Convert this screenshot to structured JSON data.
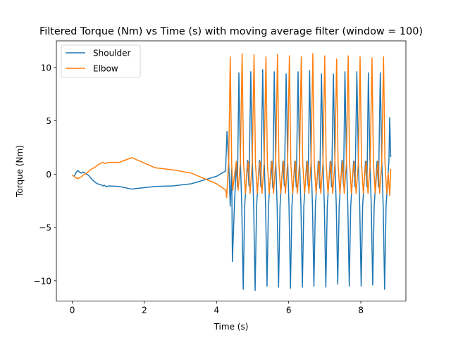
{
  "chart_data": {
    "type": "line",
    "title": "Filtered Torque (Nm) vs Time (s) with moving average filter (window = 100)",
    "xlabel": "Time (s)",
    "ylabel": "Torque (Nm)",
    "xlim": [
      -0.44,
      9.25
    ],
    "ylim": [
      -11.9,
      12.5
    ],
    "xticks": [
      0,
      2,
      4,
      6,
      8
    ],
    "yticks": [
      -10,
      -5,
      0,
      5,
      10
    ],
    "grid": false,
    "legend_position": "top-left",
    "series": [
      {
        "name": "Shoulder",
        "color": "#1f77b4",
        "points": [
          [
            0.0,
            -0.1
          ],
          [
            0.05,
            -0.2
          ],
          [
            0.1,
            0.1
          ],
          [
            0.15,
            0.35
          ],
          [
            0.2,
            0.2
          ],
          [
            0.25,
            0.1
          ],
          [
            0.3,
            0.2
          ],
          [
            0.35,
            0.1
          ],
          [
            0.4,
            0.0
          ],
          [
            0.45,
            -0.1
          ],
          [
            0.5,
            -0.3
          ],
          [
            0.55,
            -0.5
          ],
          [
            0.6,
            -0.65
          ],
          [
            0.65,
            -0.8
          ],
          [
            0.7,
            -0.9
          ],
          [
            0.75,
            -0.95
          ],
          [
            0.8,
            -1.0
          ],
          [
            0.85,
            -1.1
          ],
          [
            0.9,
            -1.05
          ],
          [
            0.95,
            -1.2
          ],
          [
            1.0,
            -1.1
          ],
          [
            1.3,
            -1.15
          ],
          [
            1.65,
            -1.4
          ],
          [
            2.3,
            -1.15
          ],
          [
            2.8,
            -1.1
          ],
          [
            3.3,
            -0.9
          ],
          [
            4.0,
            -0.2
          ],
          [
            4.25,
            0.3
          ],
          [
            4.29,
            4.0
          ],
          [
            4.34,
            1.0
          ],
          [
            4.38,
            -3.0
          ],
          [
            4.42,
            0.5
          ],
          [
            4.44,
            -8.2
          ],
          [
            4.5,
            -2.5
          ],
          [
            4.55,
            1.0
          ],
          [
            4.58,
            -1.2
          ],
          [
            4.62,
            9.5
          ],
          [
            4.66,
            1.5
          ],
          [
            4.7,
            -3.0
          ],
          [
            4.74,
            -10.8
          ],
          [
            4.78,
            -3.0
          ],
          [
            4.86,
            1.3
          ],
          [
            4.9,
            -1.1
          ],
          [
            4.95,
            9.6
          ],
          [
            4.99,
            1.5
          ],
          [
            5.03,
            -3.0
          ],
          [
            5.07,
            -10.9
          ],
          [
            5.11,
            -3.0
          ],
          [
            5.19,
            1.3
          ],
          [
            5.23,
            -1.2
          ],
          [
            5.28,
            9.8
          ],
          [
            5.32,
            1.5
          ],
          [
            5.36,
            -3.0
          ],
          [
            5.4,
            -10.5
          ],
          [
            5.44,
            -3.0
          ],
          [
            5.52,
            1.2
          ],
          [
            5.56,
            -1.3
          ],
          [
            5.6,
            9.6
          ],
          [
            5.64,
            1.5
          ],
          [
            5.68,
            -3.0
          ],
          [
            5.72,
            -10.6
          ],
          [
            5.76,
            -3.0
          ],
          [
            5.84,
            1.2
          ],
          [
            5.88,
            -1.1
          ],
          [
            5.93,
            9.4
          ],
          [
            5.97,
            1.5
          ],
          [
            6.01,
            -3.1
          ],
          [
            6.05,
            -10.7
          ],
          [
            6.09,
            -3.0
          ],
          [
            6.17,
            1.2
          ],
          [
            6.21,
            -1.2
          ],
          [
            6.26,
            9.6
          ],
          [
            6.3,
            1.5
          ],
          [
            6.34,
            -3.0
          ],
          [
            6.38,
            -10.6
          ],
          [
            6.42,
            -3.0
          ],
          [
            6.5,
            1.2
          ],
          [
            6.54,
            -1.1
          ],
          [
            6.58,
            9.7
          ],
          [
            6.62,
            1.5
          ],
          [
            6.66,
            -3.0
          ],
          [
            6.7,
            -10.5
          ],
          [
            6.74,
            -3.0
          ],
          [
            6.82,
            1.2
          ],
          [
            6.86,
            -1.3
          ],
          [
            6.91,
            9.4
          ],
          [
            6.95,
            1.5
          ],
          [
            6.99,
            -3.1
          ],
          [
            7.03,
            -10.6
          ],
          [
            7.07,
            -3.0
          ],
          [
            7.15,
            1.2
          ],
          [
            7.19,
            -1.2
          ],
          [
            7.24,
            9.4
          ],
          [
            7.28,
            1.5
          ],
          [
            7.32,
            -3.0
          ],
          [
            7.36,
            -10.3
          ],
          [
            7.4,
            -3.0
          ],
          [
            7.48,
            1.3
          ],
          [
            7.52,
            -1.1
          ],
          [
            7.56,
            9.6
          ],
          [
            7.6,
            1.5
          ],
          [
            7.64,
            -3.0
          ],
          [
            7.68,
            -10.5
          ],
          [
            7.72,
            -3.0
          ],
          [
            7.8,
            1.2
          ],
          [
            7.84,
            -1.2
          ],
          [
            7.89,
            9.6
          ],
          [
            7.93,
            1.5
          ],
          [
            7.97,
            -3.0
          ],
          [
            8.01,
            -10.5
          ],
          [
            8.05,
            -3.0
          ],
          [
            8.13,
            1.2
          ],
          [
            8.17,
            -1.2
          ],
          [
            8.21,
            9.5
          ],
          [
            8.25,
            1.5
          ],
          [
            8.29,
            -3.0
          ],
          [
            8.33,
            -10.4
          ],
          [
            8.37,
            -3.0
          ],
          [
            8.45,
            1.2
          ],
          [
            8.49,
            -1.2
          ],
          [
            8.54,
            9.5
          ],
          [
            8.58,
            1.5
          ],
          [
            8.62,
            -3.0
          ],
          [
            8.66,
            -10.8
          ],
          [
            8.7,
            -3.0
          ],
          [
            8.78,
            1.3
          ],
          [
            8.8,
            5.3
          ],
          [
            8.83,
            1.6
          ]
        ]
      },
      {
        "name": "Elbow",
        "color": "#ff7f0e",
        "points": [
          [
            0.0,
            -0.1
          ],
          [
            0.05,
            -0.2
          ],
          [
            0.1,
            -0.35
          ],
          [
            0.15,
            -0.4
          ],
          [
            0.2,
            -0.35
          ],
          [
            0.25,
            -0.25
          ],
          [
            0.3,
            -0.1
          ],
          [
            0.35,
            0.0
          ],
          [
            0.4,
            0.1
          ],
          [
            0.45,
            0.25
          ],
          [
            0.5,
            0.4
          ],
          [
            0.55,
            0.5
          ],
          [
            0.6,
            0.6
          ],
          [
            0.65,
            0.7
          ],
          [
            0.7,
            0.85
          ],
          [
            0.75,
            0.95
          ],
          [
            0.8,
            1.05
          ],
          [
            0.85,
            1.1
          ],
          [
            0.9,
            1.0
          ],
          [
            0.95,
            1.05
          ],
          [
            1.0,
            1.1
          ],
          [
            1.3,
            1.1
          ],
          [
            1.65,
            1.55
          ],
          [
            2.3,
            0.6
          ],
          [
            2.8,
            0.4
          ],
          [
            3.3,
            0.1
          ],
          [
            4.0,
            -0.9
          ],
          [
            4.26,
            -1.5
          ],
          [
            4.28,
            -2.2
          ],
          [
            4.3,
            -1.0
          ],
          [
            4.34,
            1.5
          ],
          [
            4.38,
            11.0
          ],
          [
            4.42,
            1.0
          ],
          [
            4.45,
            -1.5
          ],
          [
            4.5,
            0.0
          ],
          [
            4.55,
            1.2
          ],
          [
            4.6,
            -1.5
          ],
          [
            4.66,
            1.0
          ],
          [
            4.71,
            11.3
          ],
          [
            4.75,
            1.0
          ],
          [
            4.8,
            -1.8
          ],
          [
            4.84,
            0.1
          ],
          [
            4.88,
            1.2
          ],
          [
            4.93,
            -1.8
          ],
          [
            4.99,
            1.0
          ],
          [
            5.04,
            11.2
          ],
          [
            5.08,
            1.0
          ],
          [
            5.13,
            -1.8
          ],
          [
            5.17,
            0.1
          ],
          [
            5.21,
            1.2
          ],
          [
            5.26,
            -1.8
          ],
          [
            5.32,
            1.0
          ],
          [
            5.37,
            11.0
          ],
          [
            5.41,
            1.0
          ],
          [
            5.46,
            -1.8
          ],
          [
            5.5,
            0.1
          ],
          [
            5.54,
            1.2
          ],
          [
            5.58,
            -1.8
          ],
          [
            5.64,
            1.0
          ],
          [
            5.69,
            11.2
          ],
          [
            5.73,
            1.0
          ],
          [
            5.78,
            -1.8
          ],
          [
            5.82,
            0.1
          ],
          [
            5.86,
            1.2
          ],
          [
            5.91,
            -1.8
          ],
          [
            5.97,
            1.0
          ],
          [
            6.02,
            11.1
          ],
          [
            6.06,
            1.0
          ],
          [
            6.11,
            -1.8
          ],
          [
            6.15,
            0.1
          ],
          [
            6.19,
            1.2
          ],
          [
            6.24,
            -1.8
          ],
          [
            6.3,
            1.0
          ],
          [
            6.35,
            11.0
          ],
          [
            6.39,
            1.0
          ],
          [
            6.44,
            -1.8
          ],
          [
            6.48,
            0.1
          ],
          [
            6.52,
            1.2
          ],
          [
            6.56,
            -1.8
          ],
          [
            6.62,
            1.0
          ],
          [
            6.67,
            11.3
          ],
          [
            6.71,
            1.0
          ],
          [
            6.76,
            -1.8
          ],
          [
            6.8,
            0.1
          ],
          [
            6.84,
            1.2
          ],
          [
            6.89,
            -1.8
          ],
          [
            6.95,
            1.0
          ],
          [
            7.0,
            11.1
          ],
          [
            7.04,
            1.0
          ],
          [
            7.09,
            -1.8
          ],
          [
            7.13,
            0.1
          ],
          [
            7.17,
            1.2
          ],
          [
            7.22,
            -1.8
          ],
          [
            7.28,
            1.0
          ],
          [
            7.33,
            10.8
          ],
          [
            7.37,
            1.0
          ],
          [
            7.42,
            -1.8
          ],
          [
            7.46,
            0.1
          ],
          [
            7.5,
            1.2
          ],
          [
            7.54,
            -1.8
          ],
          [
            7.6,
            1.0
          ],
          [
            7.65,
            11.1
          ],
          [
            7.69,
            1.0
          ],
          [
            7.74,
            -1.8
          ],
          [
            7.78,
            0.1
          ],
          [
            7.82,
            1.2
          ],
          [
            7.87,
            -1.8
          ],
          [
            7.93,
            1.0
          ],
          [
            7.98,
            11.0
          ],
          [
            8.02,
            1.0
          ],
          [
            8.07,
            -1.8
          ],
          [
            8.11,
            0.1
          ],
          [
            8.15,
            1.2
          ],
          [
            8.2,
            -1.8
          ],
          [
            8.26,
            1.0
          ],
          [
            8.31,
            10.9
          ],
          [
            8.35,
            1.0
          ],
          [
            8.4,
            -1.8
          ],
          [
            8.44,
            0.1
          ],
          [
            8.48,
            1.2
          ],
          [
            8.52,
            -1.8
          ],
          [
            8.58,
            1.0
          ],
          [
            8.63,
            11.0
          ],
          [
            8.67,
            1.0
          ],
          [
            8.72,
            -1.8
          ],
          [
            8.76,
            0.1
          ],
          [
            8.8,
            -2.0
          ],
          [
            8.83,
            0.5
          ]
        ]
      }
    ]
  }
}
